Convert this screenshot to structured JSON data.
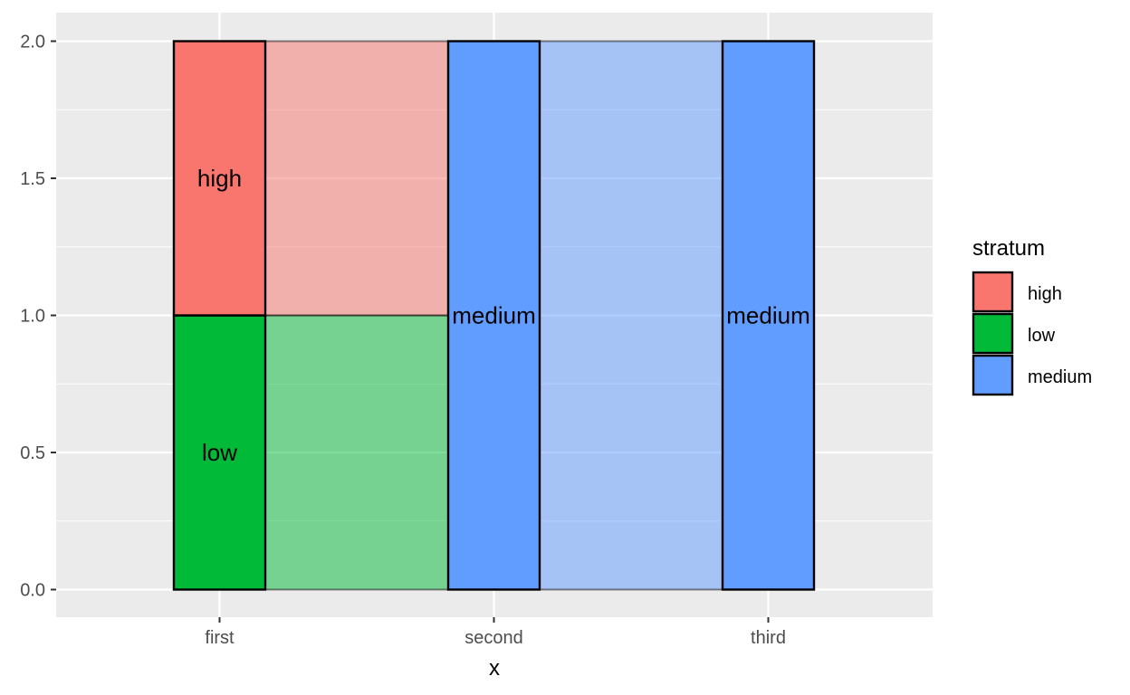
{
  "chart_data": {
    "type": "alluvial",
    "xlabel": "x",
    "ylabel": "",
    "categories": [
      "first",
      "second",
      "third"
    ],
    "ylim": [
      0,
      2.1
    ],
    "y_ticks": [
      0.0,
      0.5,
      1.0,
      1.5,
      2.0
    ],
    "y_tick_labels": [
      "0.0",
      "0.5",
      "1.0",
      "1.5",
      "2.0"
    ],
    "grid": true,
    "strata": [
      {
        "axis": "first",
        "stratum": "low",
        "ymin": 0,
        "ymax": 1,
        "label": "low"
      },
      {
        "axis": "first",
        "stratum": "high",
        "ymin": 1,
        "ymax": 2,
        "label": "high"
      },
      {
        "axis": "second",
        "stratum": "medium",
        "ymin": 0,
        "ymax": 2,
        "label": "medium"
      },
      {
        "axis": "third",
        "stratum": "medium",
        "ymin": 0,
        "ymax": 2,
        "label": "medium"
      }
    ],
    "flows": [
      {
        "from": "first",
        "to": "second",
        "fill": "low",
        "ymin": 0,
        "ymax": 1
      },
      {
        "from": "first",
        "to": "second",
        "fill": "high",
        "ymin": 1,
        "ymax": 2
      },
      {
        "from": "second",
        "to": "third",
        "fill": "medium",
        "ymin": 0,
        "ymax": 2
      }
    ],
    "legend": {
      "title": "stratum",
      "position": "right",
      "entries": [
        {
          "label": "high",
          "color": "#F8766D"
        },
        {
          "label": "low",
          "color": "#00BA38"
        },
        {
          "label": "medium",
          "color": "#619CFF"
        }
      ]
    }
  },
  "colors": {
    "panel_background": "#EBEBEB",
    "grid_major": "#FFFFFF",
    "high": "#F8766D",
    "low": "#00BA38",
    "medium": "#619CFF"
  }
}
